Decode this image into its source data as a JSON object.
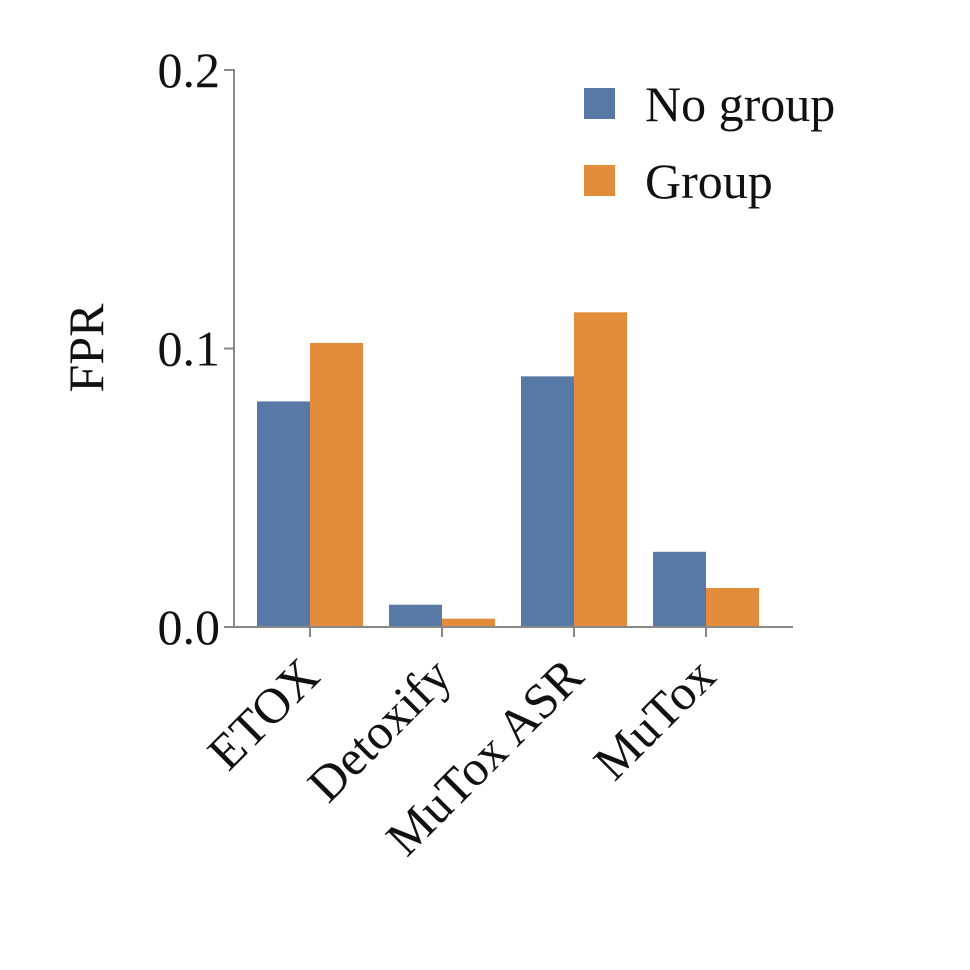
{
  "chart_data": {
    "type": "bar",
    "title": "",
    "xlabel": "",
    "ylabel": "FPR",
    "ylim": [
      0,
      0.2
    ],
    "yticks": [
      {
        "value": 0.0,
        "label": "0.0"
      },
      {
        "value": 0.1,
        "label": "0.1"
      },
      {
        "value": 0.2,
        "label": "0.2"
      }
    ],
    "categories": [
      "ETOX",
      "Detoxify",
      "MuTox ASR",
      "MuTox"
    ],
    "series": [
      {
        "name": "No group",
        "color": "#5878a6",
        "values": [
          0.081,
          0.008,
          0.09,
          0.027
        ]
      },
      {
        "name": "Group",
        "color": "#e38d3c",
        "values": [
          0.102,
          0.003,
          0.113,
          0.014
        ]
      }
    ],
    "legend_position": "top-right",
    "grid": false
  }
}
